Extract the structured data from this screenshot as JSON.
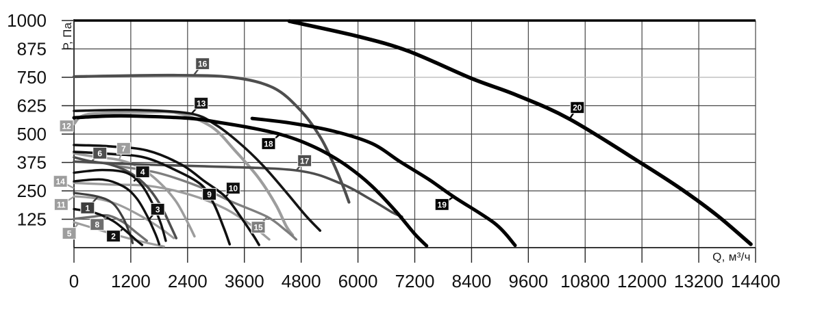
{
  "chart_data": {
    "type": "line",
    "title": "",
    "xlabel": "Q, м³/ч",
    "ylabel": "Р, Па",
    "x_range": [
      0,
      14400
    ],
    "y_range": [
      0,
      1000
    ],
    "x_ticks": [
      0,
      1200,
      2400,
      3600,
      4800,
      6000,
      7200,
      8400,
      9600,
      10800,
      12000,
      13200,
      14400
    ],
    "y_ticks": [
      125,
      250,
      375,
      500,
      625,
      750,
      875,
      1000
    ],
    "grid": true,
    "legend_position": "on-curve-badges",
    "colors": {
      "grid": "#444444",
      "grid_light": "#b5b5b5",
      "axis": "#1a1a1a",
      "tick_text": "#111111",
      "badge_text": "#ffffff"
    },
    "series": [
      {
        "name": "1",
        "color": "#3f3f3f",
        "width": 3.2,
        "points": [
          [
            0,
            241
          ],
          [
            500,
            225
          ],
          [
            820,
            195
          ],
          [
            1040,
            130
          ],
          [
            1180,
            60
          ],
          [
            1240,
            20
          ]
        ],
        "label": {
          "q": 287,
          "p": 175
        },
        "tip": {
          "q": 503,
          "p": 223
        }
      },
      {
        "name": "2",
        "color": "#101010",
        "width": 3.4,
        "points": [
          [
            0,
            170
          ],
          [
            460,
            152
          ],
          [
            820,
            118
          ],
          [
            1060,
            80
          ],
          [
            1320,
            32
          ],
          [
            1440,
            12
          ]
        ],
        "label": {
          "q": 833,
          "p": 51
        },
        "tip": {
          "q": 1049,
          "p": 85
        }
      },
      {
        "name": "3",
        "color": "#101010",
        "width": 3.4,
        "points": [
          [
            0,
            292
          ],
          [
            600,
            300
          ],
          [
            1040,
            270
          ],
          [
            1320,
            218
          ],
          [
            1540,
            142
          ],
          [
            1725,
            58
          ],
          [
            1800,
            15
          ]
        ],
        "label": {
          "q": 1768,
          "p": 169
        },
        "tip": {
          "q": 1581,
          "p": 123
        }
      },
      {
        "name": "4",
        "color": "#101010",
        "width": 3.4,
        "points": [
          [
            0,
            330
          ],
          [
            600,
            342
          ],
          [
            1100,
            330
          ],
          [
            1400,
            283
          ],
          [
            1640,
            202
          ],
          [
            1825,
            112
          ],
          [
            1940,
            30
          ]
        ],
        "label": {
          "q": 1451,
          "p": 334
        },
        "tip": {
          "q": 1265,
          "p": 292
        }
      },
      {
        "name": "5",
        "color": "#9d9d9d",
        "width": 3.2,
        "points": [
          [
            0,
            112
          ],
          [
            320,
            92
          ],
          [
            820,
            60
          ],
          [
            1400,
            28
          ],
          [
            1900,
            5
          ]
        ],
        "label": {
          "q": -100,
          "p": 63
        },
        "tip": {
          "q": 86,
          "p": 104
        }
      },
      {
        "name": "6",
        "color": "#4e4e4e",
        "width": 3.6,
        "points": [
          [
            0,
            398
          ],
          [
            350,
            380
          ],
          [
            750,
            367
          ],
          [
            1180,
            330
          ],
          [
            1540,
            270
          ],
          [
            1825,
            188
          ],
          [
            2040,
            96
          ],
          [
            2160,
            42
          ]
        ],
        "label": {
          "q": 546,
          "p": 416
        },
        "tip": {
          "q": 359,
          "p": 377
        }
      },
      {
        "name": "7",
        "color": "#9d9d9d",
        "width": 3.6,
        "points": [
          [
            0,
            415
          ],
          [
            530,
            398
          ],
          [
            950,
            386
          ],
          [
            1400,
            352
          ],
          [
            1825,
            283
          ],
          [
            2160,
            202
          ],
          [
            2400,
            112
          ],
          [
            2545,
            50
          ]
        ],
        "label": {
          "q": 1049,
          "p": 437
        },
        "tip": {
          "q": 949,
          "p": 385
        }
      },
      {
        "name": "8",
        "color": "#6f6f6f",
        "width": 3.4,
        "points": [
          [
            0,
            127
          ],
          [
            390,
            136
          ],
          [
            720,
            142
          ],
          [
            1040,
            112
          ],
          [
            1320,
            66
          ],
          [
            1540,
            30
          ]
        ],
        "label": {
          "q": 489,
          "p": 102
        },
        "tip": {
          "q": 719,
          "p": 143
        }
      },
      {
        "name": "9",
        "color": "#101010",
        "width": 3.6,
        "points": [
          [
            0,
            422
          ],
          [
            750,
            413
          ],
          [
            1470,
            398
          ],
          [
            2110,
            345
          ],
          [
            2687,
            277
          ],
          [
            2950,
            195
          ],
          [
            3160,
            90
          ],
          [
            3290,
            15
          ]
        ],
        "label": {
          "q": 2860,
          "p": 235
        },
        "tip": {
          "q": 2700,
          "p": 272
        }
      },
      {
        "name": "10",
        "color": "#101010",
        "width": 3.6,
        "points": [
          [
            0,
            452
          ],
          [
            750,
            446
          ],
          [
            1540,
            428
          ],
          [
            2260,
            367
          ],
          [
            2760,
            292
          ],
          [
            3205,
            223
          ],
          [
            3550,
            127
          ],
          [
            3800,
            50
          ],
          [
            3910,
            12
          ]
        ],
        "label": {
          "q": 3363,
          "p": 262
        },
        "tip": {
          "q": 3210,
          "p": 225
        }
      },
      {
        "name": "11",
        "color": "#9d9d9d",
        "width": 3.2,
        "points": [
          [
            0,
            226
          ],
          [
            460,
            217
          ],
          [
            890,
            193
          ],
          [
            1320,
            150
          ],
          [
            1755,
            96
          ],
          [
            2110,
            42
          ]
        ],
        "label": {
          "q": -270,
          "p": 190
        },
        "tip": {
          "q": 0,
          "p": 224
        }
      },
      {
        "name": "12",
        "color": "#9d9d9d",
        "width": 4.2,
        "points": [
          [
            0,
            545
          ],
          [
            300,
            587
          ],
          [
            1500,
            596
          ],
          [
            2200,
            592
          ],
          [
            2900,
            533
          ],
          [
            3400,
            428
          ],
          [
            3900,
            307
          ],
          [
            4270,
            187
          ],
          [
            4480,
            96
          ],
          [
            4620,
            55
          ]
        ],
        "label": {
          "q": -158,
          "p": 536
        },
        "tip": {
          "q": 60,
          "p": 565
        }
      },
      {
        "name": "13",
        "color": "#151515",
        "width": 3.6,
        "points": [
          [
            0,
            602
          ],
          [
            1300,
            606
          ],
          [
            2470,
            590
          ],
          [
            3000,
            540
          ],
          [
            3500,
            460
          ],
          [
            4000,
            360
          ],
          [
            4500,
            240
          ],
          [
            4900,
            140
          ],
          [
            5200,
            75
          ]
        ],
        "label": {
          "q": 2687,
          "p": 636
        },
        "tip": {
          "q": 2486,
          "p": 591
        }
      },
      {
        "name": "14",
        "color": "#9d9d9d",
        "width": 3.4,
        "points": [
          [
            0,
            285
          ],
          [
            750,
            278
          ],
          [
            1610,
            271
          ],
          [
            2470,
            232
          ],
          [
            3190,
            172
          ],
          [
            3765,
            96
          ],
          [
            4125,
            36
          ]
        ],
        "label": {
          "q": -287,
          "p": 292
        },
        "tip": {
          "q": 0,
          "p": 262
        }
      },
      {
        "name": "15",
        "color": "#7e7e7e",
        "width": 3.4,
        "points": [
          [
            890,
            360
          ],
          [
            1755,
            330
          ],
          [
            2615,
            271
          ],
          [
            3335,
            202
          ],
          [
            4080,
            136
          ],
          [
            4480,
            75
          ],
          [
            4695,
            36
          ]
        ],
        "label": {
          "q": 3894,
          "p": 90
        },
        "tip": {
          "q": 4081,
          "p": 136
        }
      },
      {
        "name": "16",
        "color": "#4e4e4e",
        "width": 4.2,
        "points": [
          [
            0,
            753
          ],
          [
            2040,
            759
          ],
          [
            3335,
            750
          ],
          [
            4200,
            705
          ],
          [
            4770,
            608
          ],
          [
            5200,
            488
          ],
          [
            5490,
            367
          ],
          [
            5700,
            262
          ],
          [
            5810,
            200
          ]
        ],
        "label": {
          "q": 2716,
          "p": 810
        },
        "tip": {
          "q": 2540,
          "p": 762
        }
      },
      {
        "name": "17",
        "color": "#4e4e4e",
        "width": 3.6,
        "points": [
          [
            0,
            379
          ],
          [
            1320,
            367
          ],
          [
            2760,
            358
          ],
          [
            4700,
            340
          ],
          [
            5630,
            283
          ],
          [
            6280,
            211
          ],
          [
            6710,
            157
          ],
          [
            6930,
            136
          ]
        ],
        "label": {
          "q": 4872,
          "p": 383
        },
        "tip": {
          "q": 4700,
          "p": 341
        }
      },
      {
        "name": "18",
        "color": "#000000",
        "width": 5,
        "points": [
          [
            0,
            572
          ],
          [
            1000,
            580
          ],
          [
            2400,
            570
          ],
          [
            3100,
            550
          ],
          [
            3800,
            525
          ],
          [
            4340,
            500
          ],
          [
            4800,
            468
          ],
          [
            5300,
            420
          ],
          [
            5800,
            355
          ],
          [
            6300,
            270
          ],
          [
            6800,
            160
          ],
          [
            7200,
            60
          ],
          [
            7450,
            8
          ]
        ],
        "label": {
          "q": 4110,
          "p": 458
        },
        "tip": {
          "q": 4340,
          "p": 497
        }
      },
      {
        "name": "19",
        "color": "#000000",
        "width": 5,
        "points": [
          [
            3765,
            569
          ],
          [
            4600,
            548
          ],
          [
            5500,
            512
          ],
          [
            6300,
            458
          ],
          [
            6900,
            377
          ],
          [
            7500,
            300
          ],
          [
            8030,
            223
          ],
          [
            8900,
            105
          ],
          [
            9320,
            10
          ]
        ],
        "label": {
          "q": 7775,
          "p": 190
        },
        "tip": {
          "q": 8048,
          "p": 228
        }
      },
      {
        "name": "20",
        "color": "#000000",
        "width": 5.5,
        "points": [
          [
            4550,
            997
          ],
          [
            6000,
            930
          ],
          [
            7070,
            865
          ],
          [
            8400,
            745
          ],
          [
            9370,
            670
          ],
          [
            10480,
            565
          ],
          [
            12000,
            370
          ],
          [
            12850,
            255
          ],
          [
            13600,
            140
          ],
          [
            14300,
            15
          ]
        ],
        "label": {
          "q": 10634,
          "p": 617
        },
        "tip": {
          "q": 10447,
          "p": 560
        }
      }
    ]
  }
}
